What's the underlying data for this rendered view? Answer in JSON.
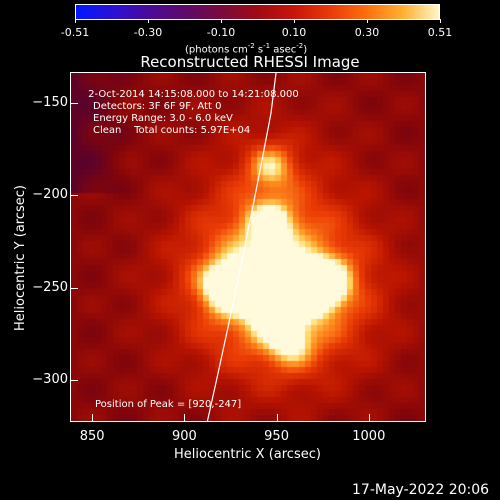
{
  "colorbar": {
    "ticks": [
      "-0.51",
      "-0.30",
      "-0.10",
      "0.10",
      "0.30",
      "0.51"
    ],
    "units_prefix": "(photons cm",
    "units_mid1": "s",
    "units_mid2": "asec",
    "units_suffix": ")",
    "exp_a": "-2",
    "exp_b": "-1",
    "exp_c": "-2"
  },
  "title": "Reconstructed RHESSI Image",
  "info": {
    "time": " 2-Oct-2014 14:15:08.000 to 14:21:08.000",
    "detectors": "Detectors: 3F 6F 9F, Att 0",
    "energy": "Energy Range: 3.0 - 6.0 keV",
    "clean": "Clean    Total counts: 5.97E+04",
    "peak": "Position of Peak = [920,-247]"
  },
  "axes": {
    "xlabel": "Heliocentric X (arcsec)",
    "ylabel": "Heliocentric Y (arcsec)",
    "xticks": [
      850,
      900,
      950,
      1000
    ],
    "yticks": [
      -150,
      -200,
      -250,
      -300
    ],
    "xrange": [
      838,
      1031
    ],
    "yrange": [
      -323,
      -133
    ]
  },
  "sources": [
    {
      "x": 920,
      "y": -247,
      "intensity": 1.0
    },
    {
      "x": 938,
      "y": -243,
      "intensity": 0.75
    },
    {
      "x": 968,
      "y": -248,
      "intensity": 0.85
    },
    {
      "x": 976,
      "y": -245,
      "intensity": 0.7
    },
    {
      "x": 945,
      "y": -182,
      "intensity": 0.65
    },
    {
      "x": 944,
      "y": -213,
      "intensity": 0.7
    },
    {
      "x": 955,
      "y": -278,
      "intensity": 0.6
    },
    {
      "x": 945,
      "y": -262,
      "intensity": 0.55
    }
  ],
  "date_stamp": "17-May-2022 20:06"
}
